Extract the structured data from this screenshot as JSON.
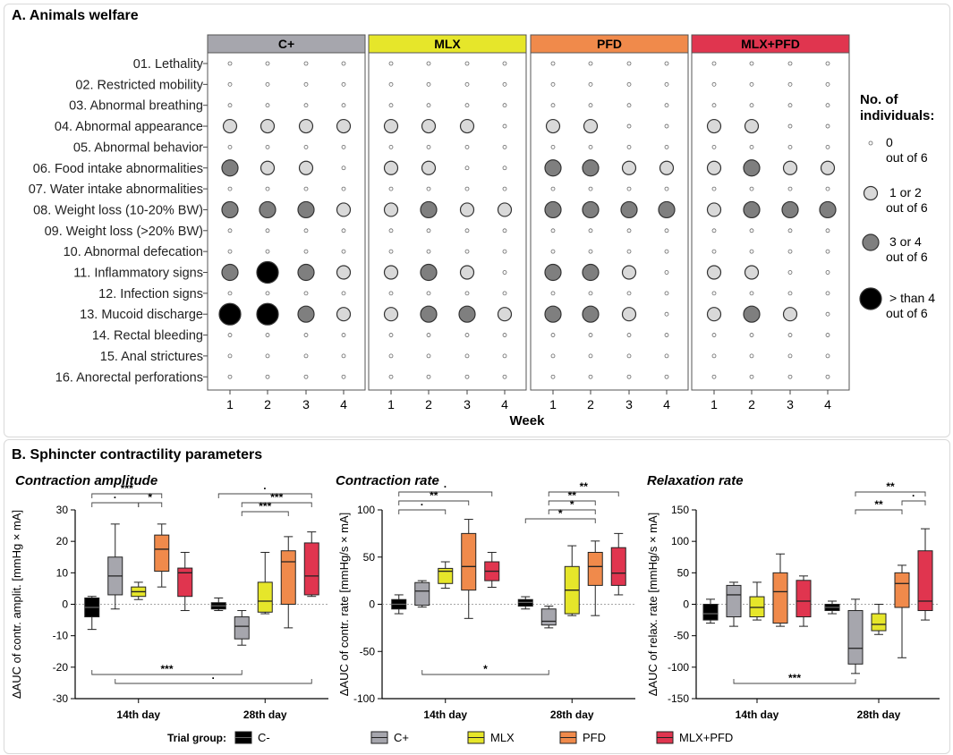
{
  "panelA": {
    "title": "A. Animals welfare",
    "xlabel": "Week",
    "legend": {
      "title_line1": "No. of",
      "title_line2": "individuals:",
      "items": [
        {
          "line1": "0",
          "line2": "out of 6",
          "level": 0
        },
        {
          "line1": "1 or 2",
          "line2": "out of 6",
          "level": 1
        },
        {
          "line1": "3 or 4",
          "line2": "out of 6",
          "level": 2
        },
        {
          "line1": "> than 4",
          "line2": "out of 6",
          "level": 3
        }
      ]
    }
  },
  "panelB": {
    "title": "B. Sphincter contractility parameters",
    "trial_group_label": "Trial group:",
    "legend": [
      {
        "name": "C-",
        "color": "#000000"
      },
      {
        "name": "C+",
        "color": "#a6a6ad"
      },
      {
        "name": "MLX",
        "color": "#e6e62a"
      },
      {
        "name": "PFD",
        "color": "#f08a4b"
      },
      {
        "name": "MLX+PFD",
        "color": "#e0354f"
      }
    ]
  },
  "chart_data": [
    {
      "type": "bubble-matrix",
      "title": "A. Animals welfare",
      "xlabel": "Week",
      "weeks": [
        "1",
        "2",
        "3",
        "4"
      ],
      "groups": [
        {
          "name": "C+",
          "color": "#a6a6ad"
        },
        {
          "name": "MLX",
          "color": "#e6e62a"
        },
        {
          "name": "PFD",
          "color": "#f08a4b"
        },
        {
          "name": "MLX+PFD",
          "color": "#e0354f"
        }
      ],
      "parameters": [
        "01. Lethality",
        "02. Restricted mobility",
        "03. Abnormal breathing",
        "04. Abnormal appearance",
        "05. Abnormal behavior",
        "06. Food intake abnormalities",
        "07. Water intake abnormalities",
        "08. Weight loss (10-20% BW)",
        "09. Weight loss (>20% BW)",
        "10. Abnormal defecation",
        "11. Inflammatory signs",
        "12. Infection signs",
        "13. Mucoid discharge",
        "14. Rectal bleeding",
        "15. Anal strictures",
        "16. Anorectal perforations"
      ],
      "levels_by_group": [
        [
          [
            0,
            0,
            0,
            0
          ],
          [
            0,
            0,
            0,
            0
          ],
          [
            0,
            0,
            0,
            0
          ],
          [
            1,
            1,
            1,
            1
          ],
          [
            0,
            0,
            0,
            0
          ],
          [
            2,
            1,
            1,
            0
          ],
          [
            0,
            0,
            0,
            0
          ],
          [
            2,
            2,
            2,
            1
          ],
          [
            0,
            0,
            0,
            0
          ],
          [
            0,
            0,
            0,
            0
          ],
          [
            2,
            3,
            2,
            1
          ],
          [
            0,
            0,
            0,
            0
          ],
          [
            3,
            3,
            2,
            1
          ],
          [
            0,
            0,
            0,
            0
          ],
          [
            0,
            0,
            0,
            0
          ],
          [
            0,
            0,
            0,
            0
          ]
        ],
        [
          [
            0,
            0,
            0,
            0
          ],
          [
            0,
            0,
            0,
            0
          ],
          [
            0,
            0,
            0,
            0
          ],
          [
            1,
            1,
            1,
            0
          ],
          [
            0,
            0,
            0,
            0
          ],
          [
            1,
            1,
            0,
            0
          ],
          [
            0,
            0,
            0,
            0
          ],
          [
            1,
            2,
            1,
            1
          ],
          [
            0,
            0,
            0,
            0
          ],
          [
            0,
            0,
            0,
            0
          ],
          [
            1,
            2,
            1,
            0
          ],
          [
            0,
            0,
            0,
            0
          ],
          [
            1,
            2,
            2,
            1
          ],
          [
            0,
            0,
            0,
            0
          ],
          [
            0,
            0,
            0,
            0
          ],
          [
            0,
            0,
            0,
            0
          ]
        ],
        [
          [
            0,
            0,
            0,
            0
          ],
          [
            0,
            0,
            0,
            0
          ],
          [
            0,
            0,
            0,
            0
          ],
          [
            1,
            1,
            0,
            0
          ],
          [
            0,
            0,
            0,
            0
          ],
          [
            2,
            2,
            1,
            1
          ],
          [
            0,
            0,
            0,
            0
          ],
          [
            2,
            2,
            2,
            2
          ],
          [
            0,
            0,
            0,
            0
          ],
          [
            0,
            0,
            0,
            0
          ],
          [
            2,
            2,
            1,
            0
          ],
          [
            0,
            0,
            0,
            0
          ],
          [
            2,
            2,
            1,
            0
          ],
          [
            0,
            0,
            0,
            0
          ],
          [
            0,
            0,
            0,
            0
          ],
          [
            0,
            0,
            0,
            0
          ]
        ],
        [
          [
            0,
            0,
            0,
            0
          ],
          [
            0,
            0,
            0,
            0
          ],
          [
            0,
            0,
            0,
            0
          ],
          [
            1,
            1,
            0,
            0
          ],
          [
            0,
            0,
            0,
            0
          ],
          [
            1,
            2,
            1,
            1
          ],
          [
            0,
            0,
            0,
            0
          ],
          [
            1,
            2,
            2,
            2
          ],
          [
            0,
            0,
            0,
            0
          ],
          [
            0,
            0,
            0,
            0
          ],
          [
            1,
            1,
            0,
            0
          ],
          [
            0,
            0,
            0,
            0
          ],
          [
            1,
            2,
            1,
            0
          ],
          [
            0,
            0,
            0,
            0
          ],
          [
            0,
            0,
            0,
            0
          ],
          [
            0,
            0,
            0,
            0
          ]
        ]
      ]
    },
    {
      "type": "box",
      "title": "Contraction amplitude",
      "ylabel": "ΔAUC of contr. amplit. [mmHg × mA]",
      "ylim": [
        -30,
        30
      ],
      "yticks": [
        -30,
        -20,
        -10,
        0,
        10,
        20,
        30
      ],
      "categories": [
        "14th day",
        "28th day"
      ],
      "series": [
        {
          "name": "C-",
          "boxes": [
            {
              "min": -8,
              "q1": -4,
              "median": -1,
              "q3": 2,
              "max": 2.5
            },
            {
              "min": -2,
              "q1": -1.5,
              "median": -0.5,
              "q3": 0.5,
              "max": 2
            }
          ]
        },
        {
          "name": "C+",
          "boxes": [
            {
              "min": -1.5,
              "q1": 3,
              "median": 9,
              "q3": 15,
              "max": 25.5
            },
            {
              "min": -13,
              "q1": -11,
              "median": -7,
              "q3": -4,
              "max": -2
            }
          ]
        },
        {
          "name": "MLX",
          "boxes": [
            {
              "min": 1.5,
              "q1": 2.5,
              "median": 4,
              "q3": 5.5,
              "max": 7
            },
            {
              "min": -3,
              "q1": -2.5,
              "median": 1,
              "q3": 7,
              "max": 16.5
            }
          ]
        },
        {
          "name": "PFD",
          "boxes": [
            {
              "min": 5.5,
              "q1": 10.5,
              "median": 17.5,
              "q3": 22,
              "max": 25.5
            },
            {
              "min": -7.5,
              "q1": 0,
              "median": 13.5,
              "q3": 17,
              "max": 21.5
            }
          ]
        },
        {
          "name": "MLX+PFD",
          "boxes": [
            {
              "min": -2,
              "q1": 2.5,
              "median": 10,
              "q3": 11.5,
              "max": 16.5
            },
            {
              "min": 2.5,
              "q1": 3,
              "median": 9,
              "q3": 19.5,
              "max": 23
            }
          ]
        }
      ],
      "significance": [
        {
          "label": "***",
          "from": "C-|14th day",
          "to": "PFD|14th day",
          "side": "top",
          "level": 0
        },
        {
          "label": "·",
          "from": "C-|14th day",
          "to": "MLX|14th day",
          "side": "top",
          "level": 1
        },
        {
          "label": "*",
          "from": "MLX|14th day",
          "to": "PFD|14th day",
          "side": "top",
          "level": 1
        },
        {
          "label": "·",
          "from": "C-|28th day",
          "to": "MLX+PFD|28th day",
          "side": "top",
          "level": 0
        },
        {
          "label": "***",
          "from": "C+|28th day",
          "to": "MLX+PFD|28th day",
          "side": "top",
          "level": 1
        },
        {
          "label": "***",
          "from": "C+|28th day",
          "to": "PFD|28th day",
          "side": "top",
          "level": 2
        },
        {
          "label": "***",
          "from": "C-|14th day",
          "to": "C+|28th day",
          "side": "bottom",
          "level": 0
        },
        {
          "label": "·",
          "from": "C+|14th day",
          "to": "MLX+PFD|28th day",
          "side": "bottom",
          "level": 1
        }
      ]
    },
    {
      "type": "box",
      "title": "Contraction rate",
      "ylabel": "ΔAUC of contr. rate [mmHg/s × mA]",
      "ylim": [
        -100,
        100
      ],
      "yticks": [
        -100,
        -50,
        0,
        50,
        100
      ],
      "categories": [
        "14th day",
        "28th day"
      ],
      "series": [
        {
          "name": "C-",
          "boxes": [
            {
              "min": -10,
              "q1": -5,
              "median": 0,
              "q3": 5,
              "max": 10
            },
            {
              "min": -5,
              "q1": -2,
              "median": 2,
              "q3": 5,
              "max": 8
            }
          ]
        },
        {
          "name": "C+",
          "boxes": [
            {
              "min": -3,
              "q1": -1,
              "median": 14,
              "q3": 23,
              "max": 25
            },
            {
              "min": -25,
              "q1": -22,
              "median": -18,
              "q3": -5,
              "max": -2
            }
          ]
        },
        {
          "name": "MLX",
          "boxes": [
            {
              "min": 17,
              "q1": 22,
              "median": 35,
              "q3": 38,
              "max": 45
            },
            {
              "min": -12,
              "q1": -10,
              "median": 15,
              "q3": 40,
              "max": 62
            }
          ]
        },
        {
          "name": "PFD",
          "boxes": [
            {
              "min": -15,
              "q1": 15,
              "median": 40,
              "q3": 75,
              "max": 90
            },
            {
              "min": -12,
              "q1": 20,
              "median": 40,
              "q3": 55,
              "max": 67
            }
          ]
        },
        {
          "name": "MLX+PFD",
          "boxes": [
            {
              "min": 18,
              "q1": 25,
              "median": 35,
              "q3": 45,
              "max": 55
            },
            {
              "min": 10,
              "q1": 20,
              "median": 33,
              "q3": 60,
              "max": 75
            }
          ]
        }
      ],
      "significance": [
        {
          "label": "·",
          "from": "C-|14th day",
          "to": "MLX+PFD|14th day",
          "side": "top",
          "level": 0
        },
        {
          "label": "**",
          "from": "C-|14th day",
          "to": "PFD|14th day",
          "side": "top",
          "level": 1
        },
        {
          "label": "·",
          "from": "C-|14th day",
          "to": "MLX|14th day",
          "side": "top",
          "level": 2
        },
        {
          "label": "**",
          "from": "C+|28th day",
          "to": "MLX+PFD|28th day",
          "side": "top",
          "level": 0
        },
        {
          "label": "**",
          "from": "C+|28th day",
          "to": "PFD|28th day",
          "side": "top",
          "level": 1
        },
        {
          "label": "*",
          "from": "C+|28th day",
          "to": "PFD|28th day",
          "side": "top",
          "level": 2
        },
        {
          "label": "*",
          "from": "C-|28th day",
          "to": "PFD|28th day",
          "side": "top",
          "level": 3
        },
        {
          "label": "*",
          "from": "C+|14th day",
          "to": "C+|28th day",
          "side": "bottom",
          "level": 0
        }
      ]
    },
    {
      "type": "box",
      "title": "Relaxation rate",
      "ylabel": "ΔAUC of relax. rate [mmHg/s × mA]",
      "ylim": [
        -150,
        150
      ],
      "yticks": [
        -150,
        -100,
        -50,
        0,
        50,
        100,
        150
      ],
      "categories": [
        "14th day",
        "28th day"
      ],
      "series": [
        {
          "name": "C-",
          "boxes": [
            {
              "min": -30,
              "q1": -25,
              "median": -15,
              "q3": 0,
              "max": 8
            },
            {
              "min": -15,
              "q1": -10,
              "median": -5,
              "q3": 0,
              "max": 5
            }
          ]
        },
        {
          "name": "C+",
          "boxes": [
            {
              "min": -35,
              "q1": -20,
              "median": 15,
              "q3": 30,
              "max": 35
            },
            {
              "min": -110,
              "q1": -95,
              "median": -70,
              "q3": -10,
              "max": 8
            }
          ]
        },
        {
          "name": "MLX",
          "boxes": [
            {
              "min": -25,
              "q1": -20,
              "median": -5,
              "q3": 12,
              "max": 35
            },
            {
              "min": -48,
              "q1": -42,
              "median": -32,
              "q3": -15,
              "max": 0
            }
          ]
        },
        {
          "name": "PFD",
          "boxes": [
            {
              "min": -35,
              "q1": -30,
              "median": 20,
              "q3": 50,
              "max": 80
            },
            {
              "min": -85,
              "q1": -5,
              "median": 33,
              "q3": 50,
              "max": 62
            }
          ]
        },
        {
          "name": "MLX+PFD",
          "boxes": [
            {
              "min": -35,
              "q1": -20,
              "median": 5,
              "q3": 38,
              "max": 45
            },
            {
              "min": -25,
              "q1": -10,
              "median": 5,
              "q3": 85,
              "max": 120
            }
          ]
        }
      ],
      "significance": [
        {
          "label": "**",
          "from": "C+|28th day",
          "to": "MLX+PFD|28th day",
          "side": "top",
          "level": 0
        },
        {
          "label": "·",
          "from": "PFD|28th day",
          "to": "MLX+PFD|28th day",
          "side": "top",
          "level": 1
        },
        {
          "label": "**",
          "from": "C+|28th day",
          "to": "PFD|28th day",
          "side": "top",
          "level": 2
        },
        {
          "label": "***",
          "from": "C+|14th day",
          "to": "C+|28th day",
          "side": "bottom",
          "level": 0
        }
      ]
    }
  ]
}
